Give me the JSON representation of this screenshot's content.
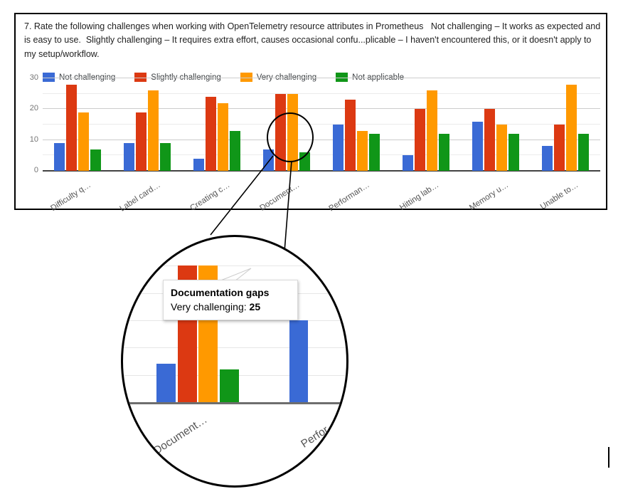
{
  "document": {
    "question_title": "7. Rate the following challenges when working with OpenTelemetry resource attributes in Prometheus   Not challenging – It works as expected and is easy to use.  Slightly challenging – It requires extra effort, causes occasional confu...plicable – I haven't encountered this, or it doesn't apply to my setup/workflow."
  },
  "chart_data": {
    "type": "bar",
    "title": "7. Rate the following challenges when working with OpenTelemetry resource attributes in Prometheus",
    "categories": [
      "Difficulty q…",
      "Label card…",
      "Creating c…",
      "Document…",
      "Performan…",
      "Hitting lab…",
      "Memory u…",
      "Unable to…"
    ],
    "series": [
      {
        "name": "Not challenging",
        "color": "#3a6ad5",
        "values": [
          9,
          9,
          4,
          7,
          15,
          5,
          16,
          8
        ]
      },
      {
        "name": "Slightly challenging",
        "color": "#dc3912",
        "values": [
          28,
          19,
          24,
          25,
          23,
          20,
          20,
          15
        ]
      },
      {
        "name": "Very challenging",
        "color": "#ff9900",
        "values": [
          19,
          26,
          22,
          25,
          13,
          26,
          15,
          28
        ]
      },
      {
        "name": "Not applicable",
        "color": "#109618",
        "values": [
          7,
          9,
          13,
          6,
          12,
          12,
          12,
          12
        ]
      }
    ],
    "ylim": [
      0,
      30
    ],
    "yticks": [
      0,
      10,
      20,
      30
    ],
    "grid": true,
    "legend_position": "top"
  },
  "magnifier": {
    "focus_category_index": 3,
    "next_category_index": 4,
    "visible_labels": [
      "Document…",
      "Perfor…"
    ],
    "tooltip": {
      "title": "Documentation gaps",
      "label": "Very challenging: ",
      "value": "25"
    }
  }
}
